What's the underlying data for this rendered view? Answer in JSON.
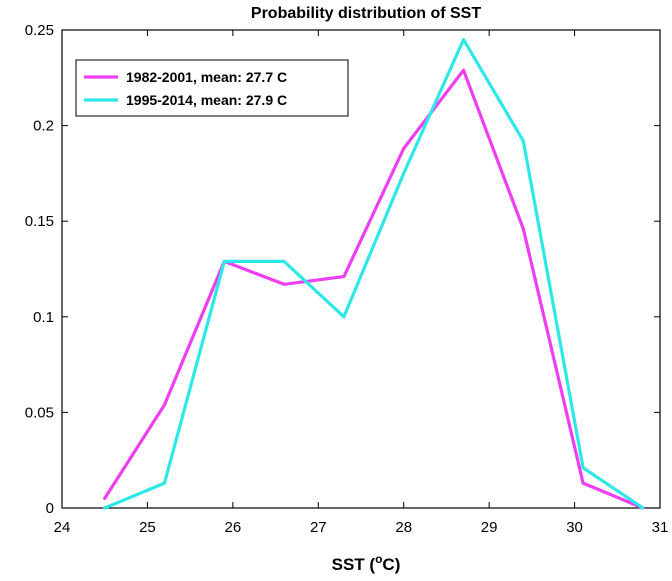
{
  "chart_data": {
    "type": "line",
    "title": "Probability distribution of SST",
    "xlabel": "SST (°C)",
    "xlabel_parts": [
      "SST (",
      "o",
      "C)"
    ],
    "ylabel": "",
    "xlim": [
      24,
      31
    ],
    "ylim": [
      0,
      0.25
    ],
    "xticks": [
      24,
      25,
      26,
      27,
      28,
      29,
      30,
      31
    ],
    "yticks": [
      0,
      0.05,
      0.1,
      0.15,
      0.2,
      0.25
    ],
    "ytick_labels": [
      "0",
      "0.05",
      "0.1",
      "0.15",
      "0.2",
      "0.25"
    ],
    "grid": false,
    "legend_position": "top-left",
    "series": [
      {
        "name": "1982-2001, mean: 27.7 C",
        "color": "#ee3ef2",
        "x": [
          24.5,
          25.2,
          25.9,
          26.6,
          27.3,
          28.0,
          28.7,
          29.4,
          30.1,
          30.8
        ],
        "y": [
          0.005,
          0.054,
          0.129,
          0.117,
          0.121,
          0.188,
          0.229,
          0.146,
          0.013,
          0.0
        ]
      },
      {
        "name": "1995-2014, mean: 27.9 C",
        "color": "#2ee8e8",
        "x": [
          24.5,
          25.2,
          25.9,
          26.6,
          27.3,
          28.0,
          28.7,
          29.4,
          30.1,
          30.8
        ],
        "y": [
          0.0,
          0.013,
          0.129,
          0.129,
          0.1,
          0.175,
          0.245,
          0.192,
          0.021,
          0.0
        ]
      }
    ]
  }
}
